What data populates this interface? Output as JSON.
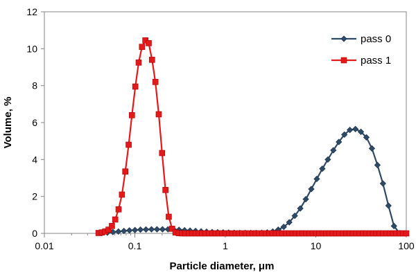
{
  "chart_data": {
    "type": "line",
    "title": "",
    "xlabel": "Particle diameter, μm",
    "ylabel": "Volume, %",
    "x_scale": "log",
    "xlim": [
      0.01,
      100
    ],
    "ylim": [
      0,
      12
    ],
    "x_ticks": [
      0.01,
      0.1,
      1,
      10,
      100
    ],
    "x_tick_labels": [
      "0.01",
      "0.1",
      "1",
      "10",
      "100"
    ],
    "y_ticks": [
      0,
      2,
      4,
      6,
      8,
      10,
      12
    ],
    "y_tick_labels": [
      "0",
      "2",
      "4",
      "6",
      "8",
      "10",
      "12"
    ],
    "grid": false,
    "legend_position": "top-right",
    "series": [
      {
        "name": "pass 0",
        "color": "#2e4a66",
        "marker": "diamond",
        "x": [
          0.0432,
          0.0497,
          0.0572,
          0.0658,
          0.0757,
          0.0871,
          0.1002,
          0.1153,
          0.1327,
          0.1527,
          0.1757,
          0.2021,
          0.2326,
          0.2676,
          0.3079,
          0.3542,
          0.4075,
          0.4689,
          0.5395,
          0.6207,
          0.7142,
          0.8217,
          0.9454,
          1.0877,
          1.2515,
          1.4399,
          1.6567,
          1.9062,
          2.1932,
          2.5235,
          2.9034,
          3.3406,
          3.8436,
          4.4223,
          5.0882,
          5.8544,
          6.7359,
          7.7501,
          8.917,
          10.2597,
          11.8045,
          13.5819,
          15.627,
          17.9799,
          20.6871,
          23.802,
          27.3858,
          31.5094,
          36.2538,
          41.7125,
          47.9931,
          55.2194,
          63.5338,
          73.1001,
          84.1067,
          96.7705
        ],
        "values": [
          0.02,
          0.04,
          0.07,
          0.1,
          0.13,
          0.16,
          0.18,
          0.2,
          0.21,
          0.22,
          0.22,
          0.22,
          0.22,
          0.21,
          0.19,
          0.17,
          0.15,
          0.13,
          0.11,
          0.09,
          0.07,
          0.06,
          0.05,
          0.04,
          0.03,
          0.02,
          0.02,
          0.02,
          0.02,
          0.03,
          0.05,
          0.1,
          0.2,
          0.35,
          0.6,
          0.95,
          1.35,
          1.85,
          2.4,
          2.95,
          3.5,
          4.0,
          4.5,
          4.95,
          5.35,
          5.6,
          5.65,
          5.5,
          5.2,
          4.6,
          3.7,
          2.7,
          1.5,
          0.4,
          0.01,
          0.0
        ]
      },
      {
        "name": "pass 1",
        "color": "#e31a1c",
        "marker": "square",
        "x": [
          0.0397,
          0.0432,
          0.047,
          0.0512,
          0.0558,
          0.0607,
          0.0661,
          0.072,
          0.0784,
          0.0854,
          0.0929,
          0.1012,
          0.1102,
          0.12,
          0.1307,
          0.1423,
          0.1549,
          0.1687,
          0.1837,
          0.2,
          0.2178,
          0.2371,
          0.2582,
          0.2812,
          0.3062,
          0.3334,
          0.3631,
          0.3953,
          0.4305,
          0.4688,
          0.5104,
          0.5558,
          0.6053,
          0.6591,
          0.7177,
          0.7815,
          0.851,
          0.9267,
          1.0091,
          1.0988,
          1.1965,
          1.3029,
          1.4188,
          1.545,
          1.6823,
          1.8319,
          1.9948,
          2.1722,
          2.3654,
          2.5757,
          2.8048,
          3.0542,
          3.3258,
          3.6215,
          3.9436,
          4.2943,
          4.6761,
          5.092,
          5.5448,
          6.0378,
          6.5747,
          7.1594,
          7.7961,
          8.4893,
          9.2442,
          10.0663,
          10.9614,
          11.9361,
          12.9975,
          14.1533,
          15.4119,
          16.7824,
          18.2748,
          19.9,
          21.6696,
          23.5965,
          25.6948,
          27.9796,
          30.4677,
          33.1771,
          36.1273,
          39.3399,
          42.8381,
          46.6475,
          50.7956,
          55.3125,
          60.2311,
          65.5871,
          71.4194,
          77.7703,
          84.6859,
          92.2167,
          100.0
        ],
        "values": [
          0.02,
          0.05,
          0.1,
          0.2,
          0.4,
          0.75,
          1.3,
          2.1,
          3.35,
          4.8,
          6.4,
          7.95,
          9.25,
          10.1,
          10.45,
          10.3,
          9.4,
          8.2,
          6.45,
          4.35,
          2.35,
          0.9,
          0.25,
          0.05,
          0.01,
          0,
          0,
          0,
          0,
          0,
          0,
          0,
          0,
          0,
          0,
          0,
          0,
          0,
          0,
          0,
          0,
          0,
          0,
          0,
          0,
          0,
          0,
          0,
          0,
          0,
          0,
          0,
          0,
          0,
          0,
          0,
          0,
          0,
          0,
          0,
          0,
          0,
          0,
          0,
          0,
          0,
          0,
          0,
          0,
          0,
          0,
          0,
          0,
          0,
          0,
          0,
          0,
          0,
          0,
          0,
          0,
          0,
          0,
          0,
          0,
          0,
          0,
          0,
          0,
          0,
          0,
          0,
          0
        ]
      }
    ]
  }
}
